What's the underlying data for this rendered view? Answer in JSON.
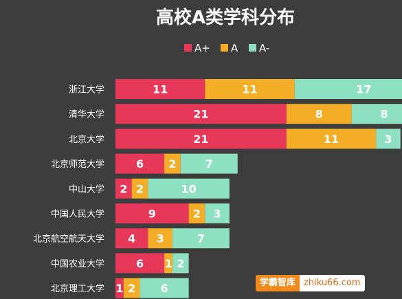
{
  "chart_data": {
    "type": "bar",
    "orientation": "horizontal",
    "stacked": true,
    "title": "高校A类学科分布",
    "categories": [
      "浙江大学",
      "清华大学",
      "北京大学",
      "北京师范大学",
      "中山大学",
      "中国人民大学",
      "北京航空航天大学",
      "中国农业大学",
      "北京理工大学"
    ],
    "series": [
      {
        "name": "A+",
        "color": "#e8385a",
        "values": [
          11,
          21,
          21,
          6,
          2,
          9,
          4,
          6,
          1
        ]
      },
      {
        "name": "A",
        "color": "#f4ad27",
        "values": [
          11,
          8,
          11,
          2,
          2,
          2,
          3,
          1,
          2
        ]
      },
      {
        "name": "A-",
        "color": "#8ee0c3",
        "values": [
          17,
          8,
          3,
          7,
          10,
          3,
          7,
          2,
          6
        ]
      }
    ],
    "legend_position": "top",
    "grid": false,
    "data_labels": true
  },
  "watermark": {
    "part1": "学霸智库",
    "part2": "zhiku66.com"
  }
}
